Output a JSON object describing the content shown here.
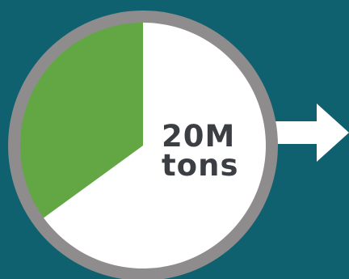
{
  "chart_data": {
    "type": "pie",
    "title": "",
    "center_label": {
      "line1": "20M",
      "line2": "tons"
    },
    "slices": [
      {
        "value": 35,
        "color": "#62a744"
      },
      {
        "value": 65,
        "color": "#ffffff"
      }
    ],
    "ring_color": "#8f8c8d",
    "arrow_color": "#ffffff"
  },
  "colors": {
    "background": "#10616f",
    "text": "#3b3f44"
  }
}
